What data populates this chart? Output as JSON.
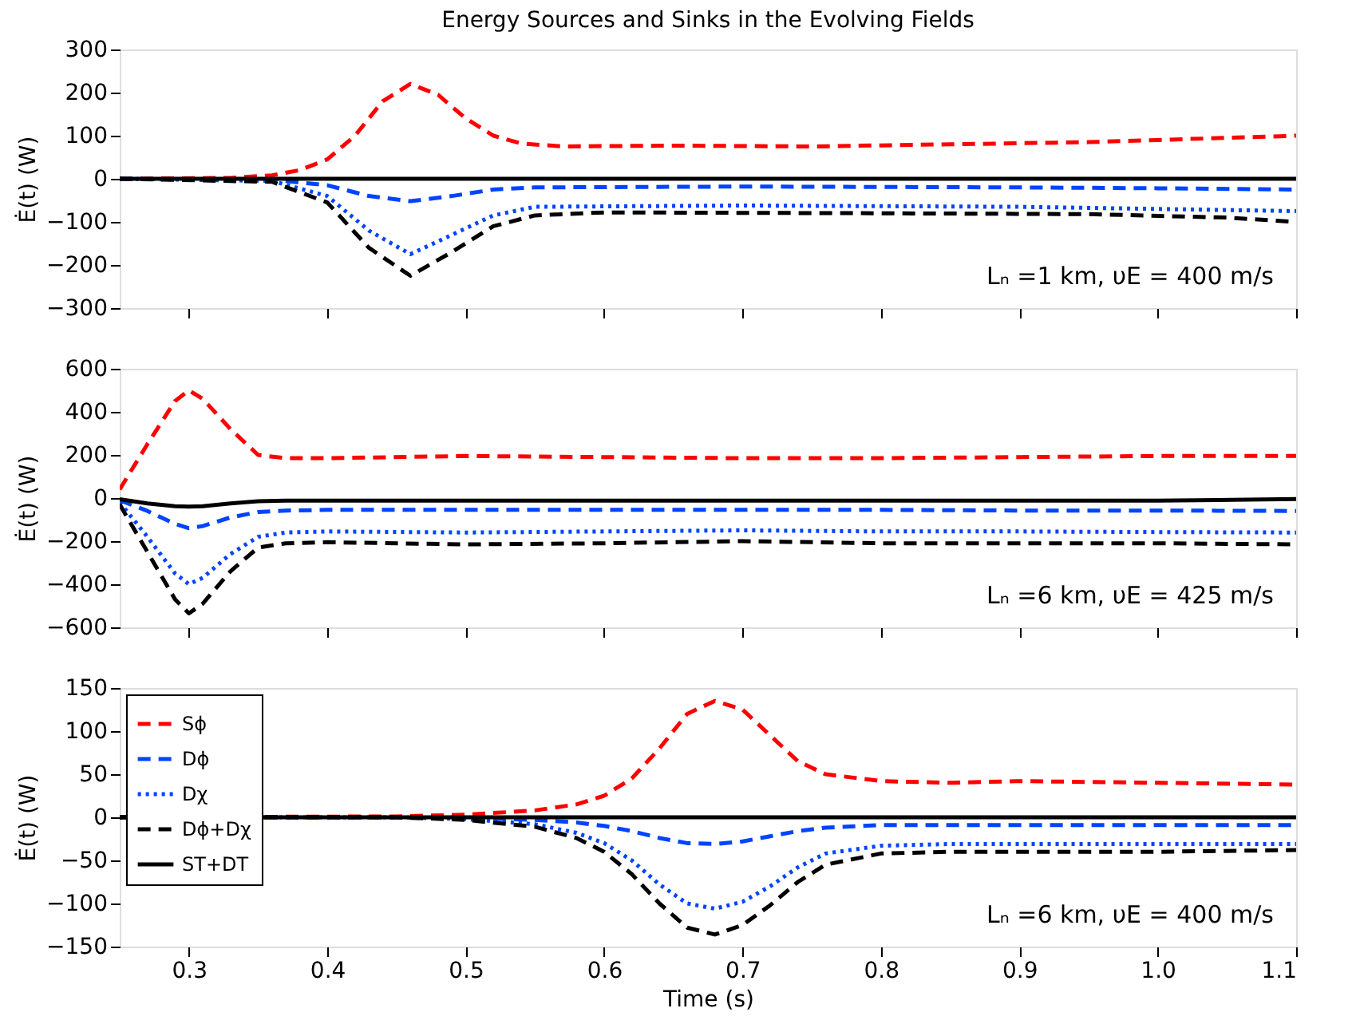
{
  "chart_data": [
    {
      "type": "line",
      "title": "Energy Sources and Sinks in the Evolving Fields",
      "ylabel": "Ė(t) (W)",
      "xlim": [
        0.25,
        1.1
      ],
      "xticks": [
        0.3,
        0.4,
        0.5,
        0.6,
        0.7,
        0.8,
        0.9,
        1.0,
        1.1
      ],
      "ylim": [
        -300,
        300
      ],
      "yticks": [
        -300,
        -200,
        -100,
        0,
        100,
        200,
        300
      ],
      "tick_labels": "y",
      "grid": false,
      "legend": false,
      "annotations": [
        "Lₙ =1 km, υE = 400 m/s"
      ],
      "series": [
        {
          "color": "#ff0000",
          "line_style": "dashed",
          "x": [
            0.25,
            0.33,
            0.36,
            0.38,
            0.4,
            0.42,
            0.44,
            0.46,
            0.48,
            0.5,
            0.52,
            0.54,
            0.57,
            0.65,
            0.75,
            0.85,
            0.95,
            1.0,
            1.05,
            1.1
          ],
          "values": [
            0,
            2,
            8,
            20,
            45,
            100,
            180,
            220,
            195,
            140,
            100,
            82,
            75,
            77,
            75,
            80,
            85,
            90,
            95,
            100
          ]
        },
        {
          "color": "#0044ff",
          "line_style": "dashed",
          "x": [
            0.25,
            0.36,
            0.4,
            0.43,
            0.46,
            0.49,
            0.52,
            0.55,
            0.7,
            0.9,
            1.0,
            1.1
          ],
          "values": [
            0,
            -2,
            -15,
            -40,
            -52,
            -40,
            -25,
            -20,
            -18,
            -20,
            -22,
            -25
          ]
        },
        {
          "color": "#0044ff",
          "line_style": "dotted",
          "x": [
            0.25,
            0.36,
            0.4,
            0.43,
            0.46,
            0.49,
            0.52,
            0.55,
            0.7,
            0.9,
            1.0,
            1.1
          ],
          "values": [
            0,
            -5,
            -40,
            -120,
            -175,
            -130,
            -85,
            -65,
            -62,
            -65,
            -70,
            -75
          ]
        },
        {
          "color": "#000000",
          "line_style": "dashed",
          "x": [
            0.25,
            0.36,
            0.4,
            0.43,
            0.46,
            0.49,
            0.52,
            0.55,
            0.6,
            0.8,
            0.95,
            1.05,
            1.1
          ],
          "values": [
            0,
            -7,
            -55,
            -160,
            -225,
            -170,
            -110,
            -85,
            -78,
            -80,
            -82,
            -90,
            -100
          ]
        },
        {
          "color": "#000000",
          "line_style": "solid",
          "x": [
            0.25,
            0.5,
            0.8,
            1.1
          ],
          "values": [
            0,
            0,
            0,
            0
          ]
        }
      ]
    },
    {
      "type": "line",
      "ylabel": "Ė(t) (W)",
      "xlim": [
        0.25,
        1.1
      ],
      "xticks": [
        0.3,
        0.4,
        0.5,
        0.6,
        0.7,
        0.8,
        0.9,
        1.0,
        1.1
      ],
      "ylim": [
        -600,
        600
      ],
      "yticks": [
        -600,
        -400,
        -200,
        0,
        200,
        400,
        600
      ],
      "tick_labels": "y",
      "grid": false,
      "legend": false,
      "annotations": [
        "Lₙ =6 km, υE = 425 m/s"
      ],
      "series": [
        {
          "color": "#ff0000",
          "line_style": "dashed",
          "x": [
            0.25,
            0.27,
            0.29,
            0.3,
            0.31,
            0.33,
            0.35,
            0.37,
            0.4,
            0.5,
            0.6,
            0.7,
            0.8,
            0.9,
            1.0,
            1.1
          ],
          "values": [
            40,
            250,
            450,
            500,
            460,
            320,
            200,
            185,
            185,
            195,
            190,
            185,
            185,
            190,
            195,
            195
          ]
        },
        {
          "color": "#0044ff",
          "line_style": "dashed",
          "x": [
            0.25,
            0.27,
            0.29,
            0.3,
            0.31,
            0.33,
            0.35,
            0.37,
            0.4,
            0.5,
            0.6,
            0.7,
            0.8,
            0.9,
            1.0,
            1.1
          ],
          "values": [
            -10,
            -60,
            -120,
            -140,
            -130,
            -90,
            -65,
            -58,
            -55,
            -55,
            -55,
            -55,
            -55,
            -58,
            -58,
            -60
          ]
        },
        {
          "color": "#0044ff",
          "line_style": "dotted",
          "x": [
            0.25,
            0.27,
            0.29,
            0.3,
            0.31,
            0.33,
            0.35,
            0.37,
            0.4,
            0.5,
            0.6,
            0.7,
            0.8,
            0.9,
            1.0,
            1.1
          ],
          "values": [
            -20,
            -180,
            -350,
            -400,
            -370,
            -260,
            -180,
            -160,
            -155,
            -160,
            -155,
            -150,
            -155,
            -155,
            -158,
            -160
          ]
        },
        {
          "color": "#000000",
          "line_style": "dashed",
          "x": [
            0.25,
            0.27,
            0.29,
            0.3,
            0.31,
            0.33,
            0.35,
            0.37,
            0.4,
            0.5,
            0.6,
            0.7,
            0.8,
            0.9,
            1.0,
            1.1
          ],
          "values": [
            -30,
            -250,
            -470,
            -535,
            -490,
            -340,
            -230,
            -210,
            -205,
            -215,
            -210,
            -200,
            -210,
            -210,
            -210,
            -215
          ]
        },
        {
          "color": "#000000",
          "line_style": "solid",
          "x": [
            0.25,
            0.27,
            0.29,
            0.3,
            0.31,
            0.33,
            0.35,
            0.37,
            0.4,
            0.5,
            0.6,
            0.7,
            0.8,
            0.9,
            1.0,
            1.1
          ],
          "values": [
            -5,
            -25,
            -38,
            -40,
            -38,
            -25,
            -15,
            -12,
            -12,
            -12,
            -12,
            -12,
            -12,
            -12,
            -12,
            -5
          ]
        }
      ]
    },
    {
      "type": "line",
      "xlabel": "Time (s)",
      "ylabel": "Ė(t) (W)",
      "xlim": [
        0.25,
        1.1
      ],
      "xticks": [
        0.3,
        0.4,
        0.5,
        0.6,
        0.7,
        0.8,
        0.9,
        {
          "value": 1.0,
          "label": "1.0"
        },
        1.1
      ],
      "ylim": [
        -150,
        150
      ],
      "yticks": [
        -150,
        -100,
        -50,
        0,
        50,
        100,
        150
      ],
      "grid": false,
      "legend": "top left",
      "annotations": [
        "Lₙ =6 km, υE = 400 m/s"
      ],
      "series": [
        {
          "name": "Sϕ",
          "color": "#ff0000",
          "line_style": "dashed",
          "x": [
            0.25,
            0.45,
            0.5,
            0.55,
            0.58,
            0.6,
            0.62,
            0.64,
            0.66,
            0.68,
            0.7,
            0.72,
            0.74,
            0.76,
            0.8,
            0.85,
            0.9,
            1.0,
            1.1
          ],
          "values": [
            0,
            1,
            3,
            8,
            15,
            25,
            45,
            80,
            120,
            135,
            125,
            95,
            65,
            50,
            42,
            40,
            42,
            40,
            38
          ]
        },
        {
          "name": "Dϕ",
          "color": "#0044ff",
          "line_style": "dashed",
          "x": [
            0.25,
            0.45,
            0.5,
            0.55,
            0.58,
            0.6,
            0.62,
            0.64,
            0.66,
            0.68,
            0.7,
            0.72,
            0.74,
            0.76,
            0.8,
            0.85,
            0.9,
            1.0,
            1.1
          ],
          "values": [
            0,
            0,
            -1,
            -3,
            -6,
            -10,
            -16,
            -24,
            -30,
            -31,
            -28,
            -22,
            -16,
            -12,
            -9,
            -9,
            -9,
            -9,
            -9
          ]
        },
        {
          "name": "Dχ",
          "color": "#0044ff",
          "line_style": "dotted",
          "x": [
            0.25,
            0.45,
            0.5,
            0.55,
            0.58,
            0.6,
            0.62,
            0.64,
            0.66,
            0.68,
            0.7,
            0.72,
            0.74,
            0.76,
            0.8,
            0.85,
            0.9,
            1.0,
            1.1
          ],
          "values": [
            0,
            0,
            -2,
            -8,
            -18,
            -30,
            -50,
            -78,
            -100,
            -106,
            -98,
            -80,
            -58,
            -42,
            -33,
            -31,
            -31,
            -31,
            -31
          ]
        },
        {
          "name": "Dϕ+Dχ",
          "color": "#000000",
          "line_style": "dashed",
          "x": [
            0.25,
            0.45,
            0.5,
            0.55,
            0.58,
            0.6,
            0.62,
            0.64,
            0.66,
            0.68,
            0.7,
            0.72,
            0.74,
            0.76,
            0.8,
            0.85,
            0.9,
            1.0,
            1.1
          ],
          "values": [
            0,
            0,
            -3,
            -11,
            -24,
            -40,
            -66,
            -100,
            -128,
            -136,
            -125,
            -102,
            -75,
            -55,
            -42,
            -40,
            -40,
            -40,
            -38
          ]
        },
        {
          "name": "ST+DT",
          "color": "#000000",
          "line_style": "solid",
          "x": [
            0.25,
            0.5,
            0.8,
            1.1
          ],
          "values": [
            0,
            0,
            0,
            0
          ]
        }
      ]
    }
  ]
}
